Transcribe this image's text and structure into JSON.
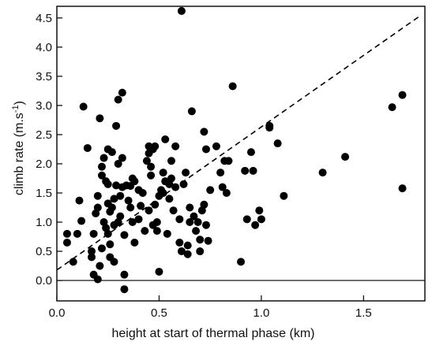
{
  "chart_data": {
    "type": "scatter",
    "xlabel": "height at start of thermal phase (km)",
    "ylabel_main": "climb rate (m.s",
    "ylabel_sup": "-1",
    "ylabel_close": ")",
    "xlim": [
      0.0,
      1.8
    ],
    "ylim": [
      -0.35,
      4.7
    ],
    "xticks": [
      0.0,
      0.5,
      1.0,
      1.5
    ],
    "xtick_labels": [
      "0.0",
      "0.5",
      "1.0",
      "1.5"
    ],
    "yticks": [
      0.0,
      0.5,
      1.0,
      1.5,
      2.0,
      2.5,
      3.0,
      3.5,
      4.0,
      4.5
    ],
    "ytick_labels": [
      "0.0",
      "0.5",
      "1.0",
      "1.5",
      "2.0",
      "2.5",
      "3.0",
      "3.5",
      "4.0",
      "4.5"
    ],
    "zero_line": true,
    "grid": false,
    "trend_line": {
      "style": "dashed",
      "x": [
        0.0,
        1.77
      ],
      "y": [
        0.18,
        4.52
      ]
    },
    "points": [
      [
        0.05,
        0.8
      ],
      [
        0.05,
        0.65
      ],
      [
        0.08,
        0.32
      ],
      [
        0.1,
        0.8
      ],
      [
        0.11,
        1.37
      ],
      [
        0.12,
        1.02
      ],
      [
        0.13,
        2.98
      ],
      [
        0.15,
        2.27
      ],
      [
        0.17,
        0.5
      ],
      [
        0.17,
        0.4
      ],
      [
        0.18,
        0.8
      ],
      [
        0.18,
        0.1
      ],
      [
        0.19,
        1.15
      ],
      [
        0.2,
        1.25
      ],
      [
        0.2,
        1.45
      ],
      [
        0.2,
        0.02
      ],
      [
        0.21,
        0.25
      ],
      [
        0.21,
        2.78
      ],
      [
        0.22,
        1.8
      ],
      [
        0.22,
        1.95
      ],
      [
        0.22,
        0.55
      ],
      [
        0.23,
        2.1
      ],
      [
        0.23,
        1.0
      ],
      [
        0.24,
        0.9
      ],
      [
        0.24,
        1.7
      ],
      [
        0.25,
        2.25
      ],
      [
        0.25,
        1.65
      ],
      [
        0.25,
        1.32
      ],
      [
        0.25,
        0.8
      ],
      [
        0.26,
        0.4
      ],
      [
        0.26,
        1.18
      ],
      [
        0.26,
        0.62
      ],
      [
        0.27,
        2.2
      ],
      [
        0.27,
        1.25
      ],
      [
        0.28,
        1.4
      ],
      [
        0.28,
        0.95
      ],
      [
        0.28,
        0.32
      ],
      [
        0.29,
        2.65
      ],
      [
        0.29,
        1.63
      ],
      [
        0.3,
        3.1
      ],
      [
        0.3,
        1.0
      ],
      [
        0.3,
        2.0
      ],
      [
        0.31,
        1.45
      ],
      [
        0.31,
        1.1
      ],
      [
        0.32,
        3.22
      ],
      [
        0.32,
        2.1
      ],
      [
        0.32,
        1.6
      ],
      [
        0.33,
        0.78
      ],
      [
        0.33,
        0.1
      ],
      [
        0.33,
        -0.15
      ],
      [
        0.34,
        1.63
      ],
      [
        0.35,
        1.37
      ],
      [
        0.36,
        1.62
      ],
      [
        0.36,
        1.25
      ],
      [
        0.37,
        1.75
      ],
      [
        0.37,
        1.0
      ],
      [
        0.38,
        0.65
      ],
      [
        0.38,
        1.7
      ],
      [
        0.4,
        1.05
      ],
      [
        0.4,
        1.55
      ],
      [
        0.41,
        1.28
      ],
      [
        0.42,
        1.5
      ],
      [
        0.43,
        0.85
      ],
      [
        0.44,
        2.05
      ],
      [
        0.45,
        2.3
      ],
      [
        0.45,
        2.18
      ],
      [
        0.45,
        1.2
      ],
      [
        0.46,
        1.95
      ],
      [
        0.46,
        1.8
      ],
      [
        0.47,
        2.25
      ],
      [
        0.47,
        0.95
      ],
      [
        0.48,
        1.3
      ],
      [
        0.48,
        2.3
      ],
      [
        0.49,
        1.0
      ],
      [
        0.49,
        0.85
      ],
      [
        0.5,
        0.15
      ],
      [
        0.5,
        1.45
      ],
      [
        0.51,
        1.55
      ],
      [
        0.52,
        1.5
      ],
      [
        0.52,
        1.85
      ],
      [
        0.53,
        1.7
      ],
      [
        0.53,
        2.42
      ],
      [
        0.54,
        0.8
      ],
      [
        0.55,
        1.65
      ],
      [
        0.55,
        1.4
      ],
      [
        0.56,
        2.05
      ],
      [
        0.56,
        1.75
      ],
      [
        0.57,
        1.2
      ],
      [
        0.58,
        1.6
      ],
      [
        0.58,
        2.3
      ],
      [
        0.6,
        1.05
      ],
      [
        0.6,
        0.65
      ],
      [
        0.61,
        4.62
      ],
      [
        0.61,
        0.5
      ],
      [
        0.62,
        1.65
      ],
      [
        0.63,
        1.85
      ],
      [
        0.64,
        0.45
      ],
      [
        0.64,
        0.6
      ],
      [
        0.65,
        1.25
      ],
      [
        0.65,
        1.0
      ],
      [
        0.66,
        2.9
      ],
      [
        0.67,
        1.1
      ],
      [
        0.68,
        0.85
      ],
      [
        0.69,
        1.0
      ],
      [
        0.7,
        0.7
      ],
      [
        0.7,
        0.5
      ],
      [
        0.71,
        1.2
      ],
      [
        0.72,
        1.3
      ],
      [
        0.72,
        2.55
      ],
      [
        0.73,
        0.95
      ],
      [
        0.73,
        2.25
      ],
      [
        0.74,
        0.68
      ],
      [
        0.75,
        1.55
      ],
      [
        0.78,
        2.3
      ],
      [
        0.8,
        1.85
      ],
      [
        0.81,
        1.6
      ],
      [
        0.82,
        2.05
      ],
      [
        0.83,
        1.5
      ],
      [
        0.84,
        2.05
      ],
      [
        0.86,
        3.33
      ],
      [
        0.9,
        0.32
      ],
      [
        0.92,
        1.88
      ],
      [
        0.93,
        1.05
      ],
      [
        0.95,
        2.2
      ],
      [
        0.96,
        1.88
      ],
      [
        0.97,
        0.95
      ],
      [
        0.99,
        1.2
      ],
      [
        1.0,
        1.05
      ],
      [
        1.04,
        2.62
      ],
      [
        1.04,
        2.65
      ],
      [
        1.08,
        2.35
      ],
      [
        1.11,
        1.45
      ],
      [
        1.3,
        1.85
      ],
      [
        1.41,
        2.12
      ],
      [
        1.64,
        2.97
      ],
      [
        1.69,
        3.18
      ],
      [
        1.69,
        1.58
      ]
    ]
  }
}
